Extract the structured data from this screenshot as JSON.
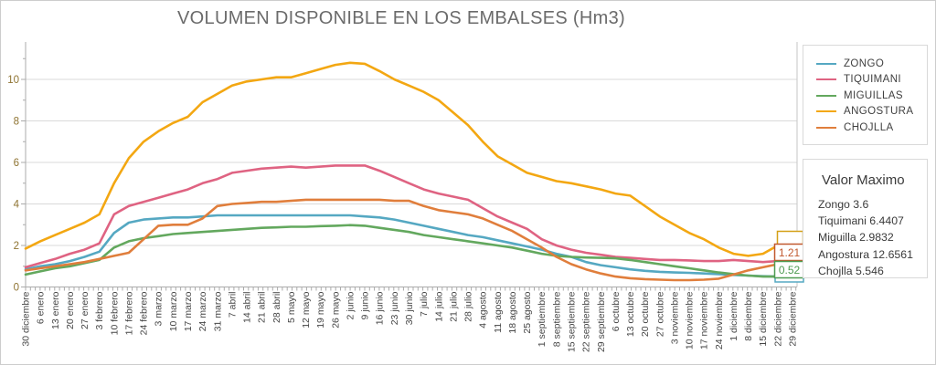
{
  "title": {
    "text": "VOLUMEN DISPONIBLE EN LOS EMBALSES (Hm3)",
    "color": "#6B6B6B"
  },
  "legend": {
    "items": [
      {
        "label": "ZONGO",
        "color": "#55A8C2"
      },
      {
        "label": "TIQUIMANI",
        "color": "#DF6382"
      },
      {
        "label": "MIGUILLAS",
        "color": "#63A85E"
      },
      {
        "label": "ANGOSTURA",
        "color": "#F3A712"
      },
      {
        "label": "CHOJLLA",
        "color": "#E07E3C"
      }
    ]
  },
  "valor_maximo": {
    "title": "Valor Maximo",
    "entries": [
      {
        "text": "Zongo 3.6"
      },
      {
        "text": "Tiquimani 6.4407"
      },
      {
        "text": "Miguilla 2.9832"
      },
      {
        "text": "Angostura 12.6561"
      },
      {
        "text": "Chojlla 5.546"
      }
    ]
  },
  "chart_data": {
    "type": "line",
    "title": "VOLUMEN DISPONIBLE EN LOS EMBALSES (Hm3)",
    "xlabel": "",
    "ylabel": "",
    "ylim": [
      0,
      11.8
    ],
    "yticks": [
      0,
      2,
      4,
      6,
      8,
      10
    ],
    "grid": true,
    "legend_position": "right",
    "x": [
      "30 diciembre",
      "6 enero",
      "13 enero",
      "20 enero",
      "27 enero",
      "3 febrero",
      "10 febrero",
      "17 febrero",
      "24 febrero",
      "3 marzo",
      "10 marzo",
      "17 marzo",
      "24 marzo",
      "31 marzo",
      "7 abril",
      "14 abril",
      "21 abril",
      "28 abril",
      "5 mayo",
      "12 mayo",
      "19 mayo",
      "26 mayo",
      "2 junio",
      "9 junio",
      "16 junio",
      "23 junio",
      "30 junio",
      "7 julio",
      "14 julio",
      "21 julio",
      "28 julio",
      "4 agosto",
      "11 agosto",
      "18 agosto",
      "25 agosto",
      "1 septiembre",
      "8 septiembre",
      "15 septiembre",
      "22 septiembre",
      "29 septiembre",
      "6 octubre",
      "13 octubre",
      "20 octubre",
      "27 octubre",
      "3 noviembre",
      "10 noviembre",
      "17 noviembre",
      "24 noviembre",
      "1 diciembre",
      "8 diciembre",
      "15 diciembre",
      "22 diciembre",
      "29 diciembre"
    ],
    "series": [
      {
        "name": "ZONGO",
        "color": "#55A8C2",
        "values": [
          0.85,
          1.0,
          1.1,
          1.25,
          1.45,
          1.7,
          2.6,
          3.1,
          3.25,
          3.3,
          3.35,
          3.35,
          3.4,
          3.45,
          3.45,
          3.45,
          3.45,
          3.45,
          3.45,
          3.45,
          3.45,
          3.45,
          3.45,
          3.4,
          3.35,
          3.25,
          3.1,
          2.95,
          2.8,
          2.65,
          2.5,
          2.4,
          2.25,
          2.1,
          1.95,
          1.8,
          1.6,
          1.45,
          1.2,
          1.05,
          0.95,
          0.85,
          0.78,
          0.73,
          0.7,
          0.68,
          0.65,
          0.62,
          0.58,
          0.55,
          0.52,
          0.5,
          0.55
        ]
      },
      {
        "name": "TIQUIMANI",
        "color": "#DF6382",
        "values": [
          0.95,
          1.15,
          1.35,
          1.6,
          1.8,
          2.1,
          3.5,
          3.9,
          4.1,
          4.3,
          4.5,
          4.7,
          5.0,
          5.2,
          5.5,
          5.6,
          5.7,
          5.75,
          5.8,
          5.75,
          5.8,
          5.85,
          5.85,
          5.85,
          5.6,
          5.3,
          5.0,
          4.7,
          4.5,
          4.35,
          4.2,
          3.8,
          3.4,
          3.1,
          2.8,
          2.3,
          2.0,
          1.8,
          1.65,
          1.55,
          1.45,
          1.4,
          1.35,
          1.3,
          1.3,
          1.28,
          1.25,
          1.25,
          1.3,
          1.25,
          1.2,
          1.25,
          1.35
        ]
      },
      {
        "name": "MIGUILLAS",
        "color": "#63A85E",
        "values": [
          0.6,
          0.75,
          0.9,
          1.0,
          1.15,
          1.3,
          1.9,
          2.2,
          2.35,
          2.45,
          2.55,
          2.6,
          2.65,
          2.7,
          2.75,
          2.8,
          2.85,
          2.87,
          2.9,
          2.9,
          2.93,
          2.95,
          2.98,
          2.95,
          2.85,
          2.75,
          2.65,
          2.5,
          2.4,
          2.3,
          2.2,
          2.1,
          2.0,
          1.9,
          1.75,
          1.6,
          1.5,
          1.45,
          1.42,
          1.4,
          1.38,
          1.3,
          1.2,
          1.1,
          1.0,
          0.9,
          0.8,
          0.7,
          0.62,
          0.55,
          0.5,
          0.5,
          0.52
        ]
      },
      {
        "name": "ANGOSTURA",
        "color": "#F3A712",
        "values": [
          1.85,
          2.2,
          2.5,
          2.8,
          3.1,
          3.5,
          5.0,
          6.2,
          7.0,
          7.5,
          7.9,
          8.2,
          8.9,
          9.3,
          9.7,
          9.9,
          10.0,
          10.1,
          10.1,
          10.3,
          10.5,
          10.7,
          10.8,
          10.75,
          10.4,
          10.0,
          9.7,
          9.4,
          9.0,
          8.4,
          7.8,
          7.0,
          6.3,
          5.9,
          5.5,
          5.3,
          5.1,
          5.0,
          4.85,
          4.7,
          4.5,
          4.4,
          3.9,
          3.4,
          3.0,
          2.6,
          2.3,
          1.9,
          1.6,
          1.5,
          1.6,
          2.0,
          2.4
        ]
      },
      {
        "name": "CHOJLLA",
        "color": "#E07E3C",
        "values": [
          0.8,
          0.9,
          1.0,
          1.1,
          1.2,
          1.35,
          1.5,
          1.65,
          2.3,
          2.95,
          3.0,
          3.0,
          3.3,
          3.9,
          4.0,
          4.05,
          4.1,
          4.1,
          4.15,
          4.2,
          4.2,
          4.2,
          4.2,
          4.2,
          4.2,
          4.15,
          4.15,
          3.9,
          3.7,
          3.6,
          3.5,
          3.3,
          3.0,
          2.7,
          2.3,
          1.9,
          1.45,
          1.1,
          0.85,
          0.65,
          0.5,
          0.42,
          0.38,
          0.35,
          0.33,
          0.33,
          0.35,
          0.4,
          0.6,
          0.8,
          0.95,
          1.1,
          1.21
        ]
      }
    ],
    "end_labels": [
      {
        "series": "ANGOSTURA",
        "text": "",
        "clipped": true,
        "color": "#D4A017"
      },
      {
        "series": "CHOJLLA",
        "text": "1.21",
        "clipped": false,
        "color": "#C1582E"
      },
      {
        "series": "MIGUILLAS",
        "text": "0.52",
        "clipped": false,
        "color": "#4E9B51"
      },
      {
        "series": "ZONGO",
        "text": "",
        "clipped": true,
        "color": "#55A8C2"
      }
    ]
  },
  "axes": {
    "y_tick_labels": [
      "0",
      "2",
      "4",
      "6",
      "8",
      "10"
    ],
    "y_label_color": "#8F7432",
    "x_label_color": "#454545",
    "axis_color": "#ABABAB",
    "grid_color": "#D9D9D9"
  }
}
